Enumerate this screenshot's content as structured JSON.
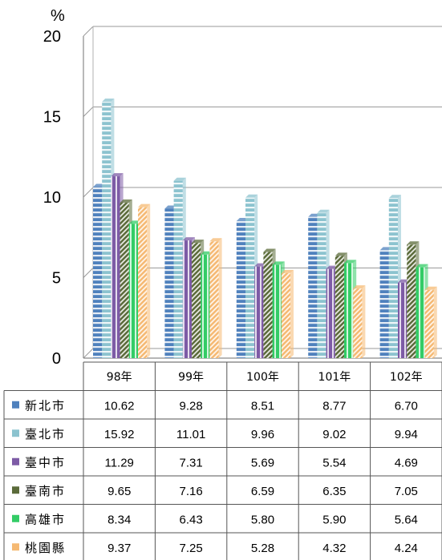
{
  "chart_data": {
    "type": "bar",
    "unit_label": "%",
    "ylim": [
      0,
      20
    ],
    "yticks": [
      "0",
      "5",
      "10",
      "15",
      "20"
    ],
    "grid": true,
    "categories": [
      "98年",
      "99年",
      "100年",
      "101年",
      "102年"
    ],
    "series": [
      {
        "name": "新北市",
        "color": "#4f81bd",
        "pattern": "horizontal-stripes",
        "values": [
          10.62,
          9.28,
          8.51,
          8.77,
          6.7
        ],
        "labels": [
          "10.62",
          "9.28",
          "8.51",
          "8.77",
          "6.70"
        ]
      },
      {
        "name": "臺北市",
        "color": "#8cc3cf",
        "pattern": "horizontal-stripes",
        "values": [
          15.92,
          11.01,
          9.96,
          9.02,
          9.94
        ],
        "labels": [
          "15.92",
          "11.01",
          "9.96",
          "9.02",
          "9.94"
        ]
      },
      {
        "name": "臺中市",
        "color": "#7d5ba6",
        "pattern": "vertical-stripes",
        "values": [
          11.29,
          7.31,
          5.69,
          5.54,
          4.69
        ],
        "labels": [
          "11.29",
          "7.31",
          "5.69",
          "5.54",
          "4.69"
        ]
      },
      {
        "name": "臺南市",
        "color": "#5b6b3a",
        "pattern": "diagonal-stripes",
        "values": [
          9.65,
          7.16,
          6.59,
          6.35,
          7.05
        ],
        "labels": [
          "9.65",
          "7.16",
          "6.59",
          "6.35",
          "7.05"
        ]
      },
      {
        "name": "高雄市",
        "color": "#33cc66",
        "pattern": "vertical-stripes",
        "values": [
          8.34,
          6.43,
          5.8,
          5.9,
          5.64
        ],
        "labels": [
          "8.34",
          "6.43",
          "5.80",
          "5.90",
          "5.64"
        ]
      },
      {
        "name": "桃園縣",
        "color": "#f5b973",
        "pattern": "diagonal-stripes",
        "values": [
          9.37,
          7.25,
          5.28,
          4.32,
          4.24
        ],
        "labels": [
          "9.37",
          "7.25",
          "5.28",
          "4.32",
          "4.24"
        ]
      }
    ]
  }
}
